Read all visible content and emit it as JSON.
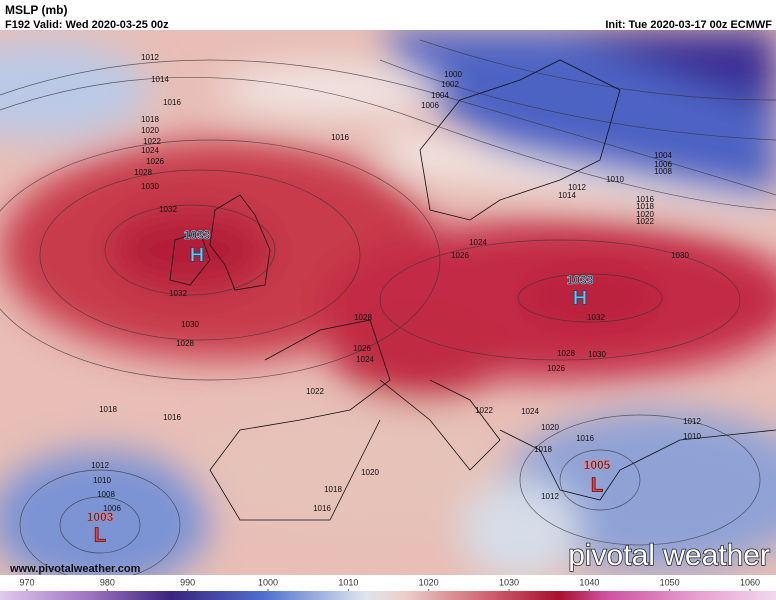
{
  "header": {
    "title": "MSLP (mb)",
    "valid": "F192 Valid: Wed 2020-03-25 00z",
    "init": "Init: Tue 2020-03-17 00z ECMWF"
  },
  "centers": [
    {
      "value": "1033",
      "symbol": "H"
    },
    {
      "value": "1033",
      "symbol": "H"
    },
    {
      "value": "1005",
      "symbol": "L"
    },
    {
      "value": "1003",
      "symbol": "L"
    }
  ],
  "contours": [
    "1012",
    "1014",
    "1016",
    "1018",
    "1020",
    "1022",
    "1024",
    "1026",
    "1028",
    "1030",
    "1032",
    "1032",
    "1030",
    "1028",
    "1018",
    "1016",
    "1012",
    "1010",
    "1008",
    "1006",
    "1016",
    "1000",
    "1002",
    "1004",
    "1006",
    "1004",
    "1006",
    "1008",
    "1010",
    "1012",
    "1014",
    "1016",
    "1018",
    "1020",
    "1022",
    "1024",
    "1026",
    "1030",
    "1032",
    "1030",
    "1028",
    "1026",
    "1026",
    "1024",
    "1022",
    "1028",
    "1020",
    "1018",
    "1016",
    "1022",
    "1024",
    "1020",
    "1016",
    "1018",
    "1012",
    "1010",
    "1012"
  ],
  "colorbar": {
    "ticks": [
      970,
      980,
      990,
      1000,
      1010,
      1020,
      1030,
      1040,
      1050,
      1060
    ]
  },
  "watermark": {
    "url": "www.pivotalweather.com",
    "brand": "pivotal weather"
  }
}
